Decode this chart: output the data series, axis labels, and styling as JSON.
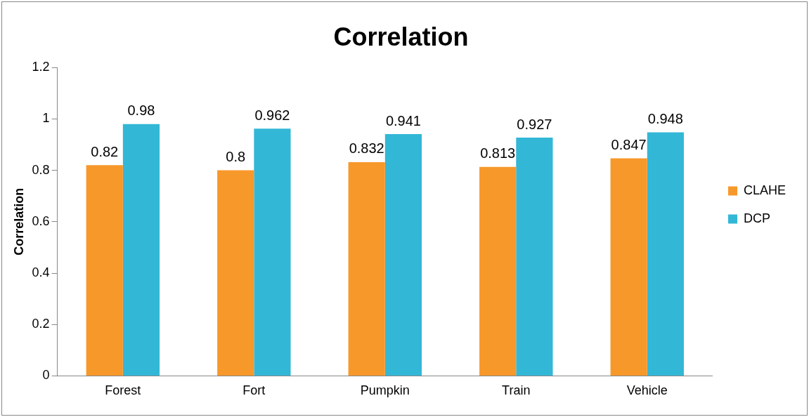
{
  "chart_data": {
    "type": "bar",
    "title": "Correlation",
    "ylabel": "Correlation",
    "categories": [
      "Forest",
      "Fort",
      "Pumpkin",
      "Train",
      "Vehicle"
    ],
    "series": [
      {
        "name": "CLAHE",
        "color": "#f7982b",
        "values": [
          0.82,
          0.8,
          0.832,
          0.813,
          0.847
        ]
      },
      {
        "name": "DCP",
        "color": "#33b7d6",
        "values": [
          0.98,
          0.962,
          0.941,
          0.927,
          0.948
        ]
      }
    ],
    "ylim": [
      0,
      1.2
    ],
    "yticks": [
      0,
      0.2,
      0.4,
      0.6,
      0.8,
      1,
      1.2
    ],
    "grid": false,
    "legend": "right",
    "data_labels": true
  }
}
